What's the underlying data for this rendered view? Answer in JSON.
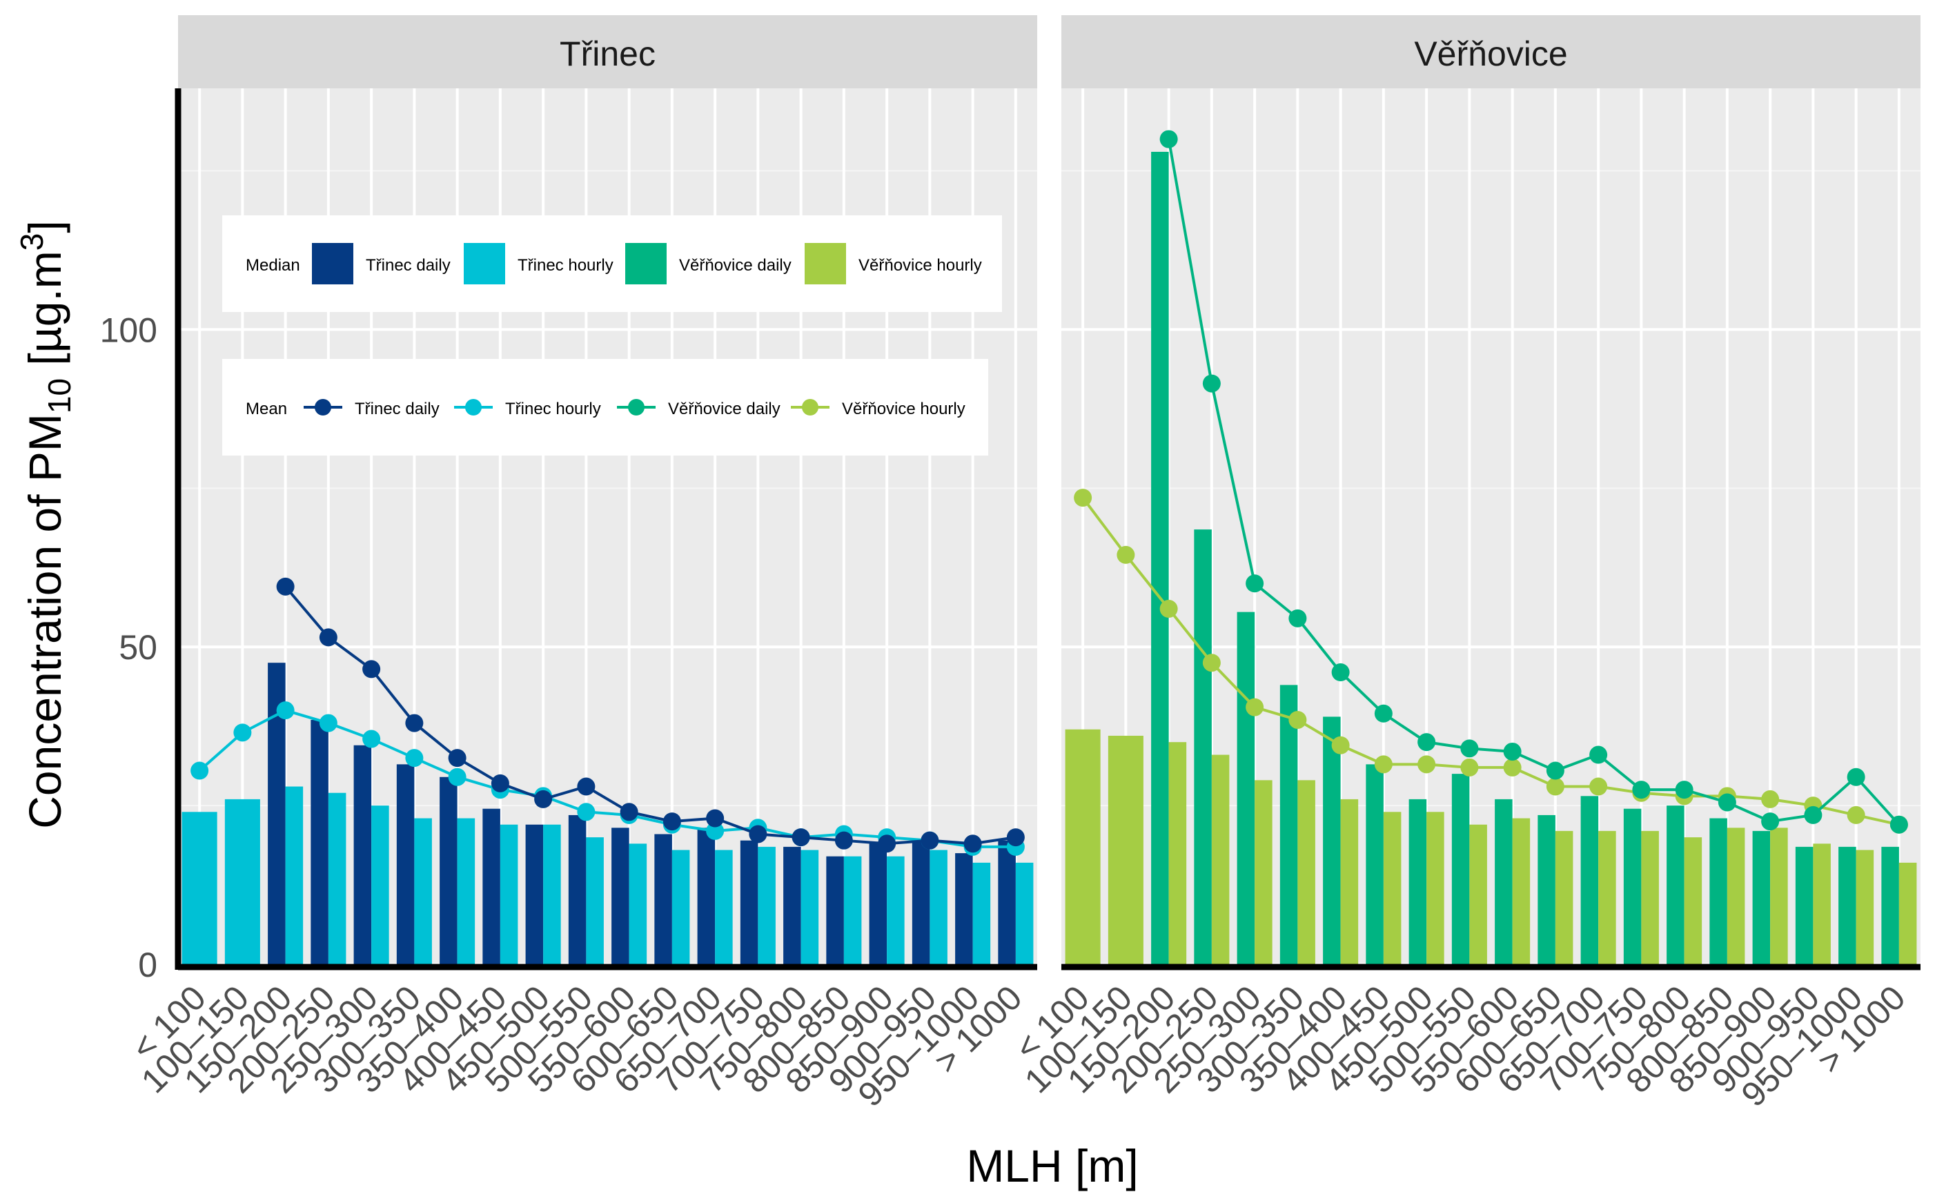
{
  "chart_data": {
    "type": "bar",
    "xlabel": "MLH [m]",
    "ylabel": "Concentration of PM10 [µg.m3]",
    "ylabel_parts": {
      "main": "Concentration of PM",
      "sub": "10",
      "unit": " [µg.m",
      "sup": "3",
      "close": "]"
    },
    "ylim": [
      0,
      138
    ],
    "yticks": [
      0,
      50,
      100
    ],
    "grid": true,
    "categories": [
      "< 100",
      "100–150",
      "150–200",
      "200–250",
      "250–300",
      "300–350",
      "350–400",
      "400–450",
      "450–500",
      "500–550",
      "550–600",
      "600–650",
      "650–700",
      "700–750",
      "750–800",
      "800–850",
      "850–900",
      "900–950",
      "950–1000",
      "> 1000"
    ],
    "legend_median": {
      "title": "Median",
      "entries": [
        {
          "label": "Třinec daily",
          "color": "#053a83"
        },
        {
          "label": "Třinec hourly",
          "color": "#00c1d5"
        },
        {
          "label": "Věřňovice daily",
          "color": "#00b482"
        },
        {
          "label": "Věřňovice hourly",
          "color": "#a5cd44"
        }
      ]
    },
    "legend_mean": {
      "title": "Mean",
      "entries": [
        {
          "label": "Třinec daily",
          "color": "#053a83"
        },
        {
          "label": "Třinec hourly",
          "color": "#00c1d5"
        },
        {
          "label": "Věřňovice daily",
          "color": "#00b482"
        },
        {
          "label": "Věřňovice hourly",
          "color": "#a5cd44"
        }
      ]
    },
    "panels": [
      {
        "title": "Třinec",
        "daily_color": "#053a83",
        "hourly_color": "#00c1d5",
        "median_daily": [
          null,
          null,
          47.5,
          38.5,
          34.5,
          31.5,
          29.5,
          24.5,
          22.0,
          23.5,
          21.5,
          20.5,
          21.5,
          19.5,
          18.5,
          17.0,
          19.0,
          19.5,
          17.5,
          19.5
        ],
        "median_hourly": [
          24.0,
          26.0,
          28.0,
          27.0,
          25.0,
          23.0,
          23.0,
          22.0,
          22.0,
          20.0,
          19.0,
          18.0,
          18.0,
          18.5,
          18.0,
          17.0,
          17.0,
          18.0,
          16.0,
          16.0
        ],
        "mean_daily": [
          null,
          null,
          59.5,
          51.5,
          46.5,
          38.0,
          32.5,
          28.5,
          26.0,
          28.0,
          24.0,
          22.5,
          23.0,
          20.5,
          20.0,
          19.5,
          19.0,
          19.5,
          19.0,
          20.0
        ],
        "mean_hourly": [
          30.5,
          36.5,
          40.0,
          38.0,
          35.5,
          32.5,
          29.5,
          27.5,
          26.5,
          24.0,
          23.5,
          22.0,
          21.0,
          21.5,
          20.0,
          20.5,
          20.0,
          19.5,
          18.5,
          18.5
        ]
      },
      {
        "title": "Věřňovice",
        "daily_color": "#00b482",
        "hourly_color": "#a5cd44",
        "median_daily": [
          null,
          null,
          128.0,
          68.5,
          55.5,
          44.0,
          39.0,
          31.5,
          26.0,
          30.0,
          26.0,
          23.5,
          26.5,
          24.5,
          25.0,
          23.0,
          21.0,
          18.5,
          18.5,
          18.5
        ],
        "median_hourly": [
          37.0,
          36.0,
          35.0,
          33.0,
          29.0,
          29.0,
          26.0,
          24.0,
          24.0,
          22.0,
          23.0,
          21.0,
          21.0,
          21.0,
          20.0,
          21.5,
          21.5,
          19.0,
          18.0,
          16.0
        ],
        "mean_daily": [
          null,
          null,
          130.0,
          91.5,
          60.0,
          54.5,
          46.0,
          39.5,
          35.0,
          34.0,
          33.5,
          30.5,
          33.0,
          27.5,
          27.5,
          25.5,
          22.5,
          23.5,
          29.5,
          22.0
        ],
        "mean_hourly": [
          73.5,
          64.5,
          56.0,
          47.5,
          40.5,
          38.5,
          34.5,
          31.5,
          31.5,
          31.0,
          31.0,
          28.0,
          28.0,
          27.0,
          26.5,
          26.5,
          26.0,
          25.0,
          23.5,
          22.0
        ]
      }
    ]
  }
}
